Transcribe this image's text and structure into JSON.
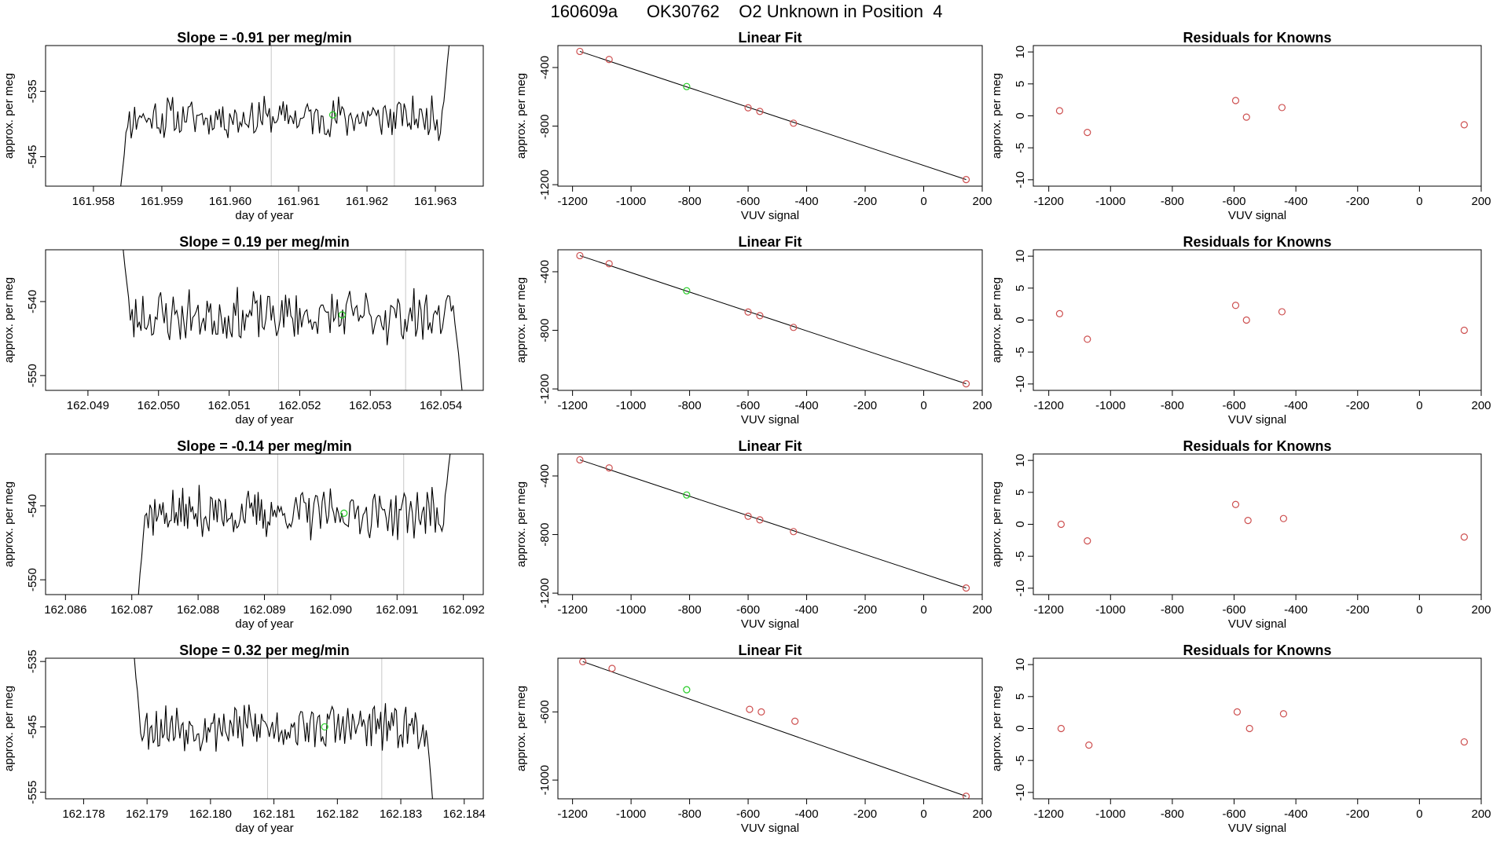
{
  "figure_title": "160609a      OK30762    O2 Unknown in Position  4",
  "colors": {
    "trace": "#000000",
    "known_point": "#cd4f4f",
    "unknown_point": "#22cc22",
    "vertical_marker": "#c8c8c8"
  },
  "chart_data": [
    {
      "row": 1,
      "panel": "timeseries",
      "type": "line",
      "title": "Slope =  -0.91  per meg/min",
      "xlabel": "day of year",
      "ylabel": "approx. per meg",
      "xlim": [
        161.9573,
        161.9637
      ],
      "ylim": [
        -549.5,
        -528
      ],
      "x_ticks": [
        "161.958",
        "161.959",
        "161.960",
        "161.961",
        "161.962",
        "161.963"
      ],
      "y_ticks": [
        "-535",
        "-545"
      ],
      "vertical_markers": [
        161.9606,
        161.9624
      ],
      "trace": {
        "x_start": 161.9584,
        "x_end": 161.9632,
        "mean": -539,
        "amplitude": 2.7,
        "start_y": -549.5,
        "end_y": -528,
        "seed": 11
      },
      "unknown_point": [
        161.9615,
        -538.6
      ]
    },
    {
      "row": 1,
      "panel": "fit",
      "type": "scatter",
      "title": "Linear Fit",
      "xlabel": "VUV signal",
      "ylabel": "approx. per meg",
      "xlim": [
        -1250,
        200
      ],
      "ylim": [
        -1210,
        -250
      ],
      "x_ticks": [
        "-1200",
        "-1000",
        "-800",
        "-600",
        "-400",
        "-200",
        "0",
        "200"
      ],
      "y_ticks": [
        "-400",
        "-800",
        "-1200"
      ],
      "knowns": [
        [
          -1175,
          -290
        ],
        [
          -1075,
          -345
        ],
        [
          -600,
          -675
        ],
        [
          -560,
          -700
        ],
        [
          -445,
          -780
        ],
        [
          145,
          -1165
        ]
      ],
      "unknown": [
        -810,
        -530
      ],
      "line": [
        [
          -1175,
          -290
        ],
        [
          145,
          -1165
        ]
      ]
    },
    {
      "row": 1,
      "panel": "residuals",
      "type": "scatter",
      "title": "Residuals for Knowns",
      "xlabel": "VUV signal",
      "ylabel": "approx. per meg",
      "xlim": [
        -1250,
        200
      ],
      "ylim": [
        -11,
        11
      ],
      "x_ticks": [
        "-1200",
        "-1000",
        "-800",
        "-600",
        "-400",
        "-200",
        "0",
        "200"
      ],
      "y_ticks": [
        "10",
        "5",
        "0",
        "-5",
        "-10"
      ],
      "points": [
        [
          -1165,
          0.8
        ],
        [
          -1075,
          -2.6
        ],
        [
          -595,
          2.4
        ],
        [
          -560,
          -0.2
        ],
        [
          -445,
          1.3
        ],
        [
          145,
          -1.4
        ]
      ]
    },
    {
      "row": 2,
      "panel": "timeseries",
      "type": "line",
      "title": "Slope =  0.19  per meg/min",
      "xlabel": "day of year",
      "ylabel": "approx. per meg",
      "xlim": [
        162.0484,
        162.0546
      ],
      "ylim": [
        -552,
        -533
      ],
      "x_ticks": [
        "162.049",
        "162.050",
        "162.051",
        "162.052",
        "162.053",
        "162.054"
      ],
      "y_ticks": [
        "-540",
        "-550"
      ],
      "vertical_markers": [
        162.0517,
        162.0535
      ],
      "trace": {
        "x_start": 162.0495,
        "x_end": 162.0543,
        "mean": -542,
        "amplitude": 2.9,
        "start_y": -533,
        "end_y": -552,
        "seed": 23
      },
      "unknown_point": [
        162.0526,
        -541.8
      ]
    },
    {
      "row": 2,
      "panel": "fit",
      "type": "scatter",
      "title": "Linear Fit",
      "xlabel": "VUV signal",
      "ylabel": "approx. per meg",
      "xlim": [
        -1250,
        200
      ],
      "ylim": [
        -1210,
        -250
      ],
      "x_ticks": [
        "-1200",
        "-1000",
        "-800",
        "-600",
        "-400",
        "-200",
        "0",
        "200"
      ],
      "y_ticks": [
        "-400",
        "-800",
        "-1200"
      ],
      "knowns": [
        [
          -1175,
          -290
        ],
        [
          -1075,
          -345
        ],
        [
          -600,
          -675
        ],
        [
          -560,
          -700
        ],
        [
          -445,
          -780
        ],
        [
          145,
          -1165
        ]
      ],
      "unknown": [
        -810,
        -530
      ],
      "line": [
        [
          -1175,
          -290
        ],
        [
          145,
          -1165
        ]
      ]
    },
    {
      "row": 2,
      "panel": "residuals",
      "type": "scatter",
      "title": "Residuals for Knowns",
      "xlabel": "VUV signal",
      "ylabel": "approx. per meg",
      "xlim": [
        -1250,
        200
      ],
      "ylim": [
        -11,
        11
      ],
      "x_ticks": [
        "-1200",
        "-1000",
        "-800",
        "-600",
        "-400",
        "-200",
        "0",
        "200"
      ],
      "y_ticks": [
        "10",
        "5",
        "0",
        "-5",
        "-10"
      ],
      "points": [
        [
          -1165,
          1.0
        ],
        [
          -1075,
          -3.0
        ],
        [
          -595,
          2.3
        ],
        [
          -560,
          0.0
        ],
        [
          -445,
          1.3
        ],
        [
          145,
          -1.6
        ]
      ]
    },
    {
      "row": 3,
      "panel": "timeseries",
      "type": "line",
      "title": "Slope =  -0.14  per meg/min",
      "xlabel": "day of year",
      "ylabel": "approx. per meg",
      "xlim": [
        162.0857,
        162.0923
      ],
      "ylim": [
        -552,
        -533
      ],
      "x_ticks": [
        "162.086",
        "162.087",
        "162.088",
        "162.089",
        "162.090",
        "162.091",
        "162.092"
      ],
      "y_ticks": [
        "-540",
        "-550"
      ],
      "vertical_markers": [
        162.0892,
        162.0911
      ],
      "trace": {
        "x_start": 162.0871,
        "x_end": 162.0918,
        "mean": -541,
        "amplitude": 2.8,
        "start_y": -552,
        "end_y": -533,
        "seed": 37
      },
      "unknown_point": [
        162.0902,
        -541.0
      ]
    },
    {
      "row": 3,
      "panel": "fit",
      "type": "scatter",
      "title": "Linear Fit",
      "xlabel": "VUV signal",
      "ylabel": "approx. per meg",
      "xlim": [
        -1250,
        200
      ],
      "ylim": [
        -1210,
        -250
      ],
      "x_ticks": [
        "-1200",
        "-1000",
        "-800",
        "-600",
        "-400",
        "-200",
        "0",
        "200"
      ],
      "y_ticks": [
        "-400",
        "-800",
        "-1200"
      ],
      "knowns": [
        [
          -1175,
          -290
        ],
        [
          -1075,
          -345
        ],
        [
          -600,
          -675
        ],
        [
          -560,
          -700
        ],
        [
          -445,
          -780
        ],
        [
          145,
          -1165
        ]
      ],
      "unknown": [
        -810,
        -530
      ],
      "line": [
        [
          -1175,
          -290
        ],
        [
          145,
          -1165
        ]
      ]
    },
    {
      "row": 3,
      "panel": "residuals",
      "type": "scatter",
      "title": "Residuals for Knowns",
      "xlabel": "VUV signal",
      "ylabel": "approx. per meg",
      "xlim": [
        -1250,
        200
      ],
      "ylim": [
        -11,
        11
      ],
      "x_ticks": [
        "-1200",
        "-1000",
        "-800",
        "-600",
        "-400",
        "-200",
        "0",
        "200"
      ],
      "y_ticks": [
        "10",
        "5",
        "0",
        "-5",
        "-10"
      ],
      "points": [
        [
          -1160,
          0.0
        ],
        [
          -1075,
          -2.6
        ],
        [
          -595,
          3.1
        ],
        [
          -555,
          0.6
        ],
        [
          -440,
          0.9
        ],
        [
          145,
          -2.0
        ]
      ]
    },
    {
      "row": 4,
      "panel": "timeseries",
      "type": "line",
      "title": "Slope =  0.32  per meg/min",
      "xlabel": "day of year",
      "ylabel": "approx. per meg",
      "xlim": [
        162.1774,
        162.1843
      ],
      "ylim": [
        -556,
        -534.5
      ],
      "x_ticks": [
        "162.178",
        "162.179",
        "162.180",
        "162.181",
        "162.182",
        "162.183",
        "162.184"
      ],
      "y_ticks": [
        "-535",
        "-545",
        "-555"
      ],
      "vertical_markers": [
        162.1809,
        162.1827
      ],
      "trace": {
        "x_start": 162.1788,
        "x_end": 162.1835,
        "mean": -545,
        "amplitude": 3.0,
        "start_y": -534.5,
        "end_y": -556,
        "seed": 53
      },
      "unknown_point": [
        162.1818,
        -545.0
      ]
    },
    {
      "row": 4,
      "panel": "fit",
      "type": "scatter",
      "title": "Linear Fit",
      "xlabel": "VUV signal",
      "ylabel": "approx. per meg",
      "xlim": [
        -1250,
        200
      ],
      "ylim": [
        -1110,
        -285
      ],
      "x_ticks": [
        "-1200",
        "-1000",
        "-800",
        "-600",
        "-400",
        "-200",
        "0",
        "200"
      ],
      "y_ticks": [
        "-600",
        "-1000"
      ],
      "knowns": [
        [
          -1165,
          -305
        ],
        [
          -1065,
          -345
        ],
        [
          -595,
          -585
        ],
        [
          -555,
          -600
        ],
        [
          -440,
          -655
        ],
        [
          145,
          -1095
        ]
      ],
      "unknown": [
        -810,
        -470
      ],
      "line": [
        [
          -1165,
          -305
        ],
        [
          145,
          -1095
        ]
      ]
    },
    {
      "row": 4,
      "panel": "residuals",
      "type": "scatter",
      "title": "Residuals for Knowns",
      "xlabel": "VUV signal",
      "ylabel": "approx. per meg",
      "xlim": [
        -1250,
        200
      ],
      "ylim": [
        -11,
        11
      ],
      "x_ticks": [
        "-1200",
        "-1000",
        "-800",
        "-600",
        "-400",
        "-200",
        "0",
        "200"
      ],
      "y_ticks": [
        "10",
        "5",
        "0",
        "-5",
        "-10"
      ],
      "points": [
        [
          -1160,
          0.0
        ],
        [
          -1070,
          -2.6
        ],
        [
          -590,
          2.6
        ],
        [
          -550,
          0.0
        ],
        [
          -440,
          2.3
        ],
        [
          145,
          -2.1
        ]
      ]
    }
  ]
}
